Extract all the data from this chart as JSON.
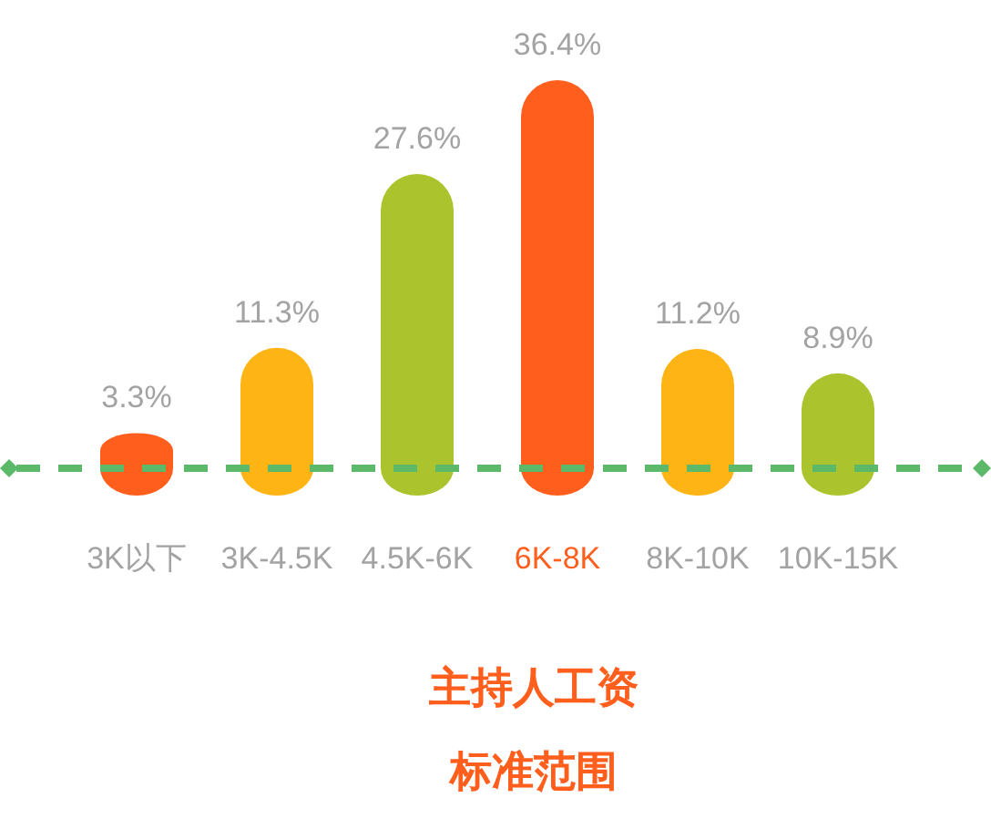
{
  "chart_data": {
    "type": "bar",
    "title": "主持人工资",
    "subtitle": "标准范围",
    "categories": [
      "3K以下",
      "3K-4.5K",
      "4.5K-6K",
      "6K-8K",
      "8K-10K",
      "10K-15K"
    ],
    "values": [
      3.3,
      11.3,
      27.6,
      36.4,
      11.2,
      8.9
    ],
    "value_labels": [
      "3.3%",
      "11.3%",
      "27.6%",
      "36.4%",
      "11.2%",
      "8.9%"
    ],
    "colors": [
      "#ff5e1c",
      "#ffb416",
      "#abc32c",
      "#ff5e1c",
      "#ffb416",
      "#abc32c"
    ],
    "ref_lines": [
      {
        "axis": "y",
        "value": 0,
        "color": "#5cb96a",
        "line_style": "dashed"
      }
    ]
  }
}
